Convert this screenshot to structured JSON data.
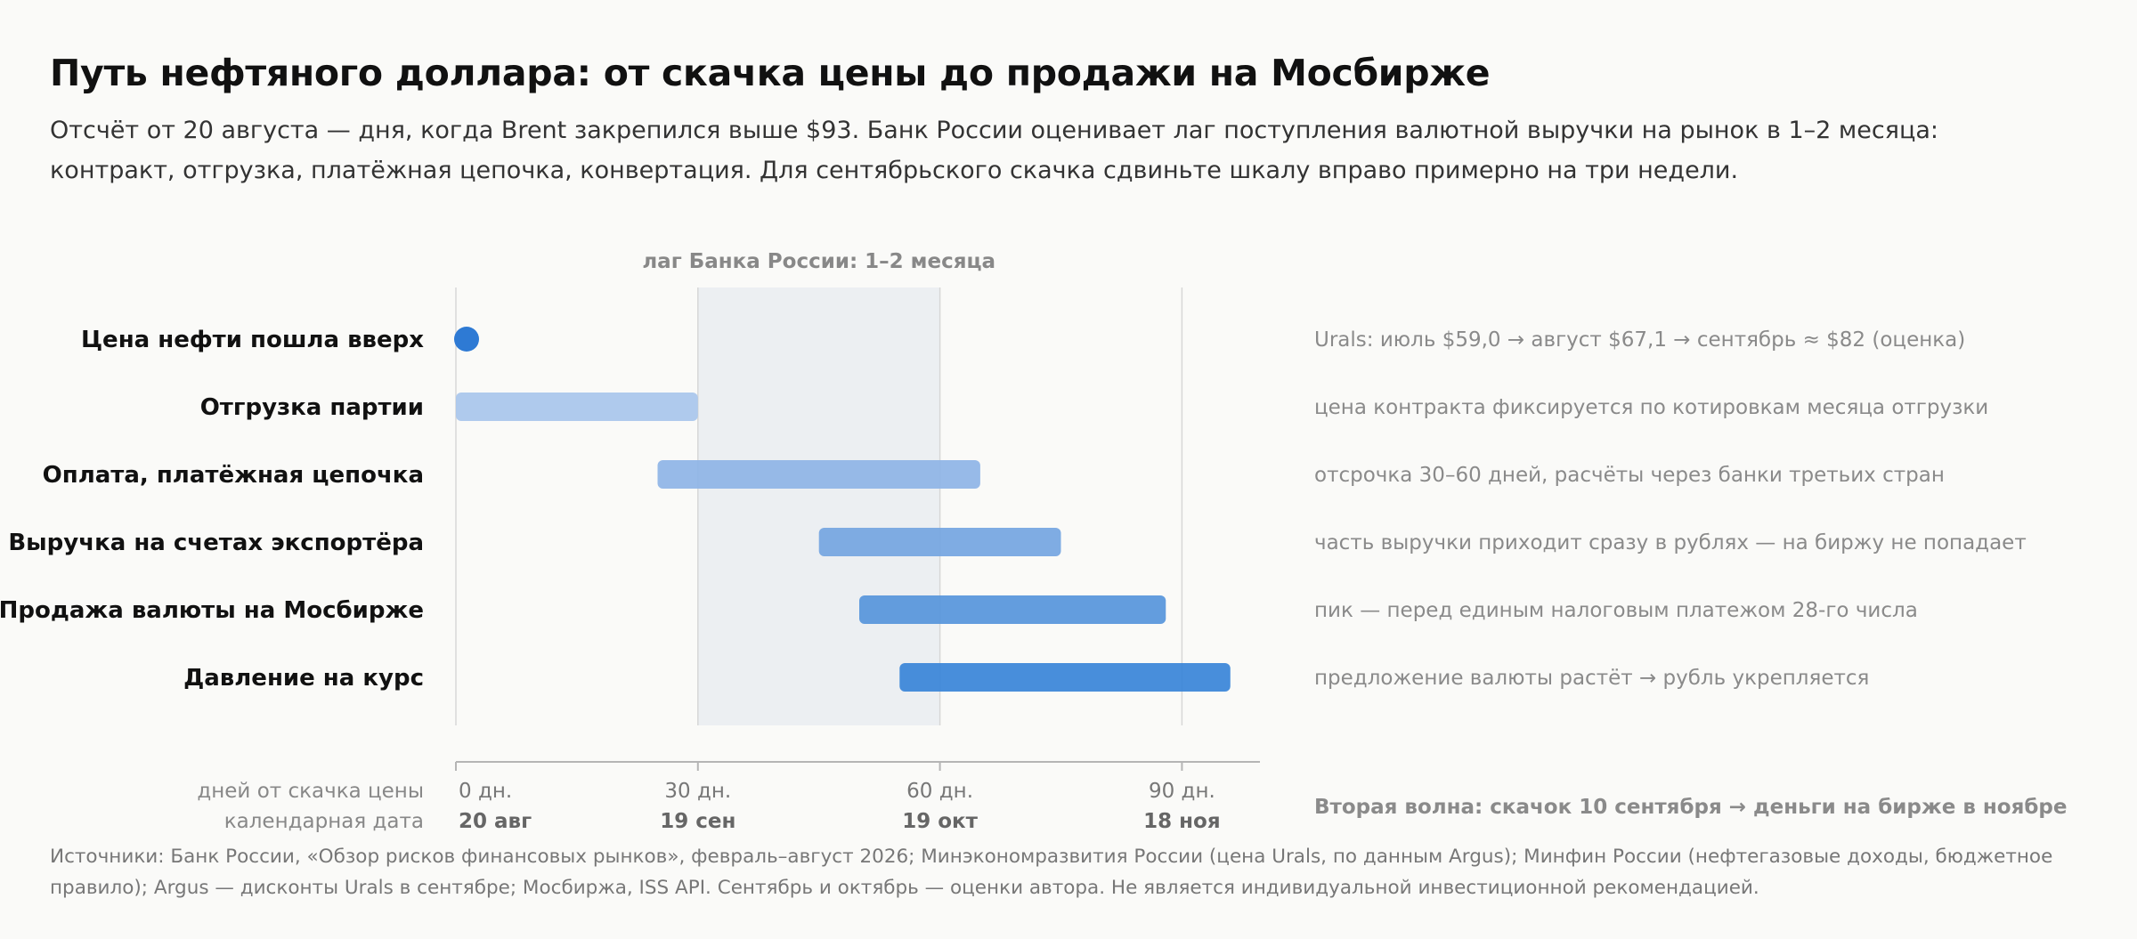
{
  "header": {
    "title": "Путь нефтяного доллара: от скачка цены до продажи на Мосбирже",
    "subtitle": "Отсчёт от 20 августа — дня, когда Brent закрепился выше $93. Банк России оценивает лаг поступления валютной выручки на рынок в 1–2 месяца: контракт, отгрузка, платёжная цепочка, конвертация. Для сентябрьского скачка сдвиньте шкалу вправо примерно на три недели."
  },
  "chart_data": {
    "type": "bar",
    "orientation": "horizontal-range",
    "xlim": [
      0,
      100
    ],
    "grid": true,
    "band": {
      "start": 30,
      "end": 60,
      "label": "лаг Банка России: 1–2 месяца"
    },
    "series": [
      {
        "label": "Цена нефти пошла вверх",
        "start": 0,
        "end": 0,
        "marker": "point",
        "color": "#2e7ad4",
        "note": "Urals: июль $59,0 → август $67,1 → сентябрь ≈ $82 (оценка)"
      },
      {
        "label": "Отгрузка партии",
        "start": 0,
        "end": 30,
        "color": "#a9c6ec",
        "note": "цена контракта фиксируется по котировкам месяца отгрузки"
      },
      {
        "label": "Оплата, платёжная цепочка",
        "start": 25,
        "end": 65,
        "color": "#8fb5e6",
        "note": "отсрочка 30–60 дней, расчёты через банки третьих стран"
      },
      {
        "label": "Выручка на счетах экспортёра",
        "start": 45,
        "end": 75,
        "color": "#75a6e1",
        "note": "часть выручки приходит сразу в рублях — на биржу не попадает"
      },
      {
        "label": "Продажа валюты на Мосбирже",
        "start": 50,
        "end": 88,
        "color": "#5796dc",
        "note": "пик — перед единым налоговым платежом 28-го числа"
      },
      {
        "label": "Давление на курс",
        "start": 55,
        "end": 96,
        "color": "#3a85d8",
        "note": "предложение валюты растёт → рубль укрепляется"
      }
    ],
    "ticks": [
      {
        "value": 0,
        "label": "0 дн.",
        "date": "20 авг"
      },
      {
        "value": 30,
        "label": "30 дн.",
        "date": "19 сен"
      },
      {
        "value": 60,
        "label": "60 дн.",
        "date": "19 окт"
      },
      {
        "value": 90,
        "label": "90 дн.",
        "date": "18 ноя"
      }
    ],
    "axis_label_days": "дней от скачка цены",
    "axis_label_dates": "календарная дата",
    "callout": "Вторая волна: скачок 10 сентября → деньги на бирже в ноябре"
  },
  "footer": {
    "source": "Источники: Банк России, «Обзор рисков финансовых рынков», февраль–август 2026; Минэкономразвития России (цена Urals, по данным Argus); Минфин России (нефтегазовые доходы, бюджетное правило); Argus — дисконты Urals в сентябре; Мосбиржа, ISS API. Сентябрь и октябрь — оценки автора. Не является индивидуальной инвестиционной рекомендацией."
  }
}
